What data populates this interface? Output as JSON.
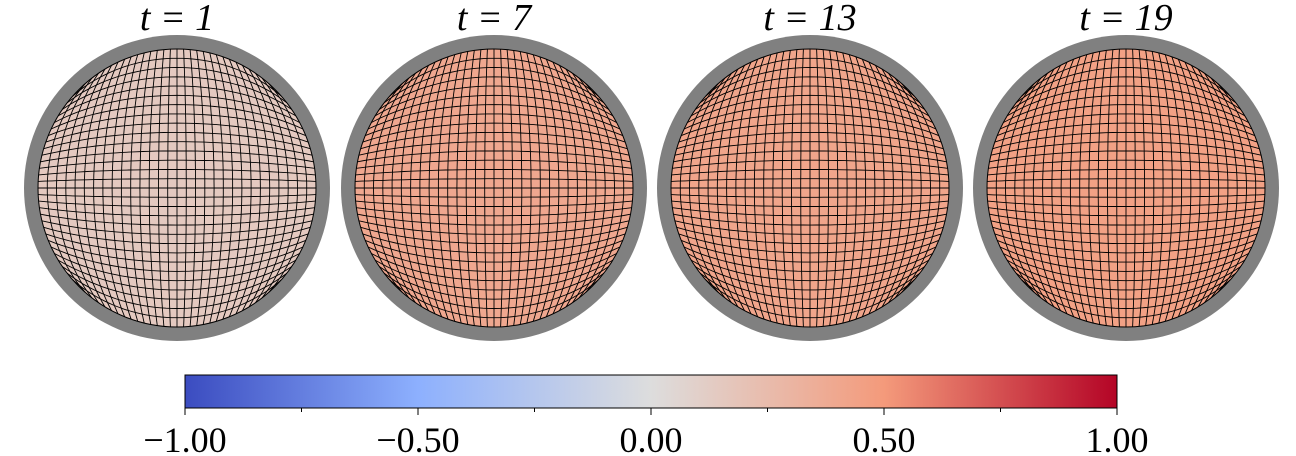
{
  "chart_data": {
    "type": "disk-mesh",
    "panels": [
      {
        "title": "t = 1",
        "value": 0.15
      },
      {
        "title": "t = 7",
        "value": 0.4
      },
      {
        "title": "t = 13",
        "value": 0.42
      },
      {
        "title": "t = 19",
        "value": 0.45
      }
    ],
    "colormap": [
      "#3b4cc0",
      "#8db0fe",
      "#dddddd",
      "#f49a7b",
      "#b40426"
    ],
    "clim": [
      -1,
      1
    ],
    "colorbar_ticks": [
      {
        "value": -1,
        "label": "−1.00"
      },
      {
        "value": -0.5,
        "label": "−0.50"
      },
      {
        "value": 0,
        "label": "0.00"
      },
      {
        "value": 0.5,
        "label": "0.50"
      },
      {
        "value": 1,
        "label": "1.00"
      }
    ],
    "colorbar_minor_ticks": [
      -0.75,
      -0.25,
      0.25,
      0.75
    ]
  }
}
